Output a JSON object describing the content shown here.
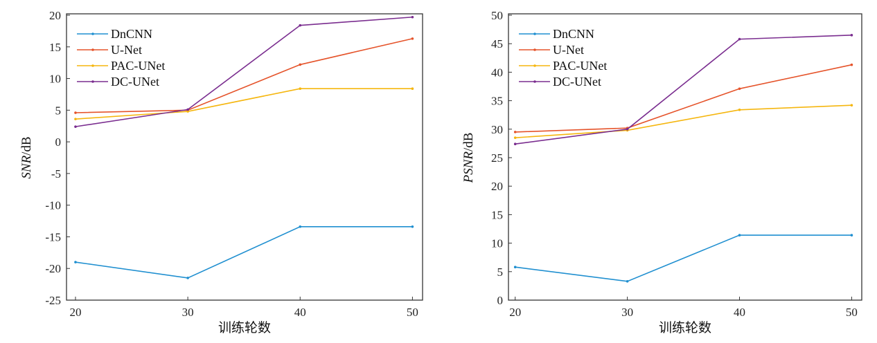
{
  "chart_data": [
    {
      "type": "line",
      "title": "",
      "xlabel": "训练轮数",
      "ylabel_italic": "SNR",
      "ylabel_unit": "/dB",
      "x": [
        20,
        30,
        40,
        50
      ],
      "xlim": [
        19.2,
        50.9
      ],
      "ylim": [
        -25,
        20
      ],
      "yticks": [
        20,
        15,
        10,
        5,
        0,
        -5,
        -10,
        -15,
        -20,
        -25
      ],
      "xticks": [
        20,
        30,
        40,
        50
      ],
      "legend_position": "top-left",
      "series": [
        {
          "name": "DnCNN",
          "color": "#1f8fd0",
          "values": [
            -19.0,
            -21.5,
            -13.4,
            -13.4
          ]
        },
        {
          "name": "U-Net",
          "color": "#e5532a",
          "values": [
            4.6,
            5.0,
            12.2,
            16.3
          ]
        },
        {
          "name": "PAC-UNet",
          "color": "#f5b60e",
          "values": [
            3.6,
            4.8,
            8.4,
            8.4
          ]
        },
        {
          "name": "DC-UNet",
          "color": "#7a2d8f",
          "values": [
            2.4,
            5.1,
            18.4,
            19.7
          ]
        }
      ]
    },
    {
      "type": "line",
      "title": "",
      "xlabel": "训练轮数",
      "ylabel_italic": "PSNR",
      "ylabel_unit": "/dB",
      "x": [
        20,
        30,
        40,
        50
      ],
      "xlim": [
        19.4,
        50.9
      ],
      "ylim": [
        0,
        50
      ],
      "yticks": [
        50,
        45,
        40,
        35,
        30,
        25,
        20,
        15,
        10,
        5,
        0
      ],
      "xticks": [
        20,
        30,
        40,
        50
      ],
      "legend_position": "top-left",
      "series": [
        {
          "name": "DnCNN",
          "color": "#1f8fd0",
          "values": [
            5.8,
            3.3,
            11.4,
            11.4
          ]
        },
        {
          "name": "U-Net",
          "color": "#e5532a",
          "values": [
            29.5,
            30.2,
            37.1,
            41.3
          ]
        },
        {
          "name": "PAC-UNet",
          "color": "#f5b60e",
          "values": [
            28.5,
            29.8,
            33.4,
            34.2
          ]
        },
        {
          "name": "DC-UNet",
          "color": "#7a2d8f",
          "values": [
            27.4,
            30.0,
            45.8,
            46.5
          ]
        }
      ]
    }
  ]
}
